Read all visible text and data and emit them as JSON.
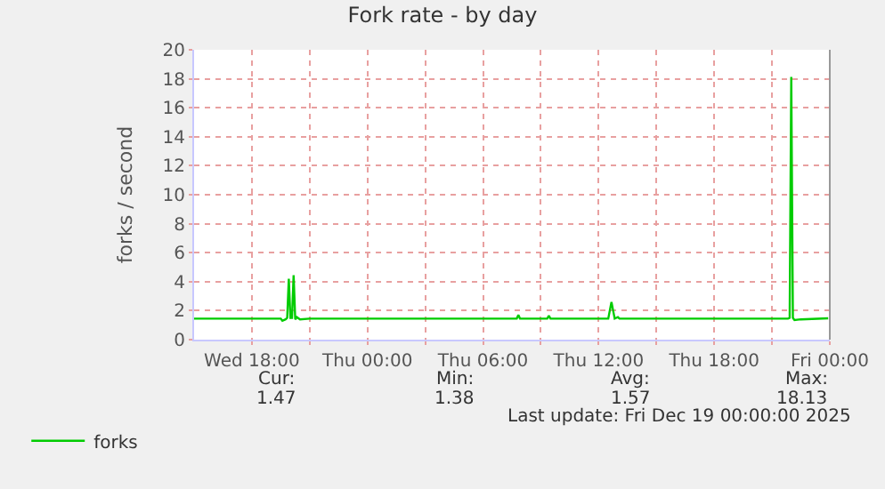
{
  "chart_data": {
    "type": "line",
    "title": "Fork rate - by day",
    "ylabel": "forks / second",
    "x": [
      "2025-12-17T15:00",
      "2025-12-17T19:30",
      "2025-12-17T19:35",
      "2025-12-17T19:45",
      "2025-12-17T19:50",
      "2025-12-17T19:55",
      "2025-12-17T20:00",
      "2025-12-17T20:05",
      "2025-12-17T20:10",
      "2025-12-17T20:15",
      "2025-12-17T20:20",
      "2025-12-17T20:30",
      "2025-12-17T21:00",
      "2025-12-18T07:45",
      "2025-12-18T07:50",
      "2025-12-18T07:55",
      "2025-12-18T09:20",
      "2025-12-18T09:25",
      "2025-12-18T09:30",
      "2025-12-18T12:30",
      "2025-12-18T12:40",
      "2025-12-18T12:50",
      "2025-12-18T13:00",
      "2025-12-18T13:05",
      "2025-12-18T21:50",
      "2025-12-18T21:55",
      "2025-12-18T22:00",
      "2025-12-18T22:05",
      "2025-12-18T22:10",
      "2025-12-18T22:30",
      "2025-12-18T23:55"
    ],
    "series": [
      {
        "name": "forks",
        "color": "#00cc00",
        "values": [
          1.45,
          1.45,
          1.3,
          1.4,
          1.5,
          4.2,
          1.5,
          1.5,
          4.45,
          1.4,
          1.55,
          1.4,
          1.45,
          1.45,
          1.7,
          1.45,
          1.45,
          1.65,
          1.45,
          1.45,
          2.6,
          1.45,
          1.55,
          1.45,
          1.45,
          1.5,
          18.13,
          1.5,
          1.35,
          1.4,
          1.47
        ]
      }
    ],
    "xlim": [
      "2025-12-17T15:00",
      "2025-12-19T00:00"
    ],
    "xticks": [
      {
        "value": "2025-12-17T18:00",
        "label": "Wed 18:00"
      },
      {
        "value": "2025-12-17T21:00",
        "label": null
      },
      {
        "value": "2025-12-18T00:00",
        "label": "Thu 00:00"
      },
      {
        "value": "2025-12-18T03:00",
        "label": null
      },
      {
        "value": "2025-12-18T06:00",
        "label": "Thu 06:00"
      },
      {
        "value": "2025-12-18T09:00",
        "label": null
      },
      {
        "value": "2025-12-18T12:00",
        "label": "Thu 12:00"
      },
      {
        "value": "2025-12-18T15:00",
        "label": null
      },
      {
        "value": "2025-12-18T18:00",
        "label": "Thu 18:00"
      },
      {
        "value": "2025-12-18T21:00",
        "label": null
      },
      {
        "value": "2025-12-19T00:00",
        "label": "Fri 00:00"
      }
    ],
    "ylim": [
      0,
      20
    ],
    "yticks": [
      0,
      2,
      4,
      6,
      8,
      10,
      12,
      14,
      16,
      18,
      20
    ],
    "grid": true,
    "legend": "bottom left",
    "marker": "none",
    "line_style": "solid",
    "annotations": [
      "Cur:",
      "1.47",
      "Min:",
      "1.38",
      "Avg:",
      "1.57",
      "Max:",
      "18.13",
      "Last update: Fri Dec 19 00:00:00 2025"
    ]
  }
}
